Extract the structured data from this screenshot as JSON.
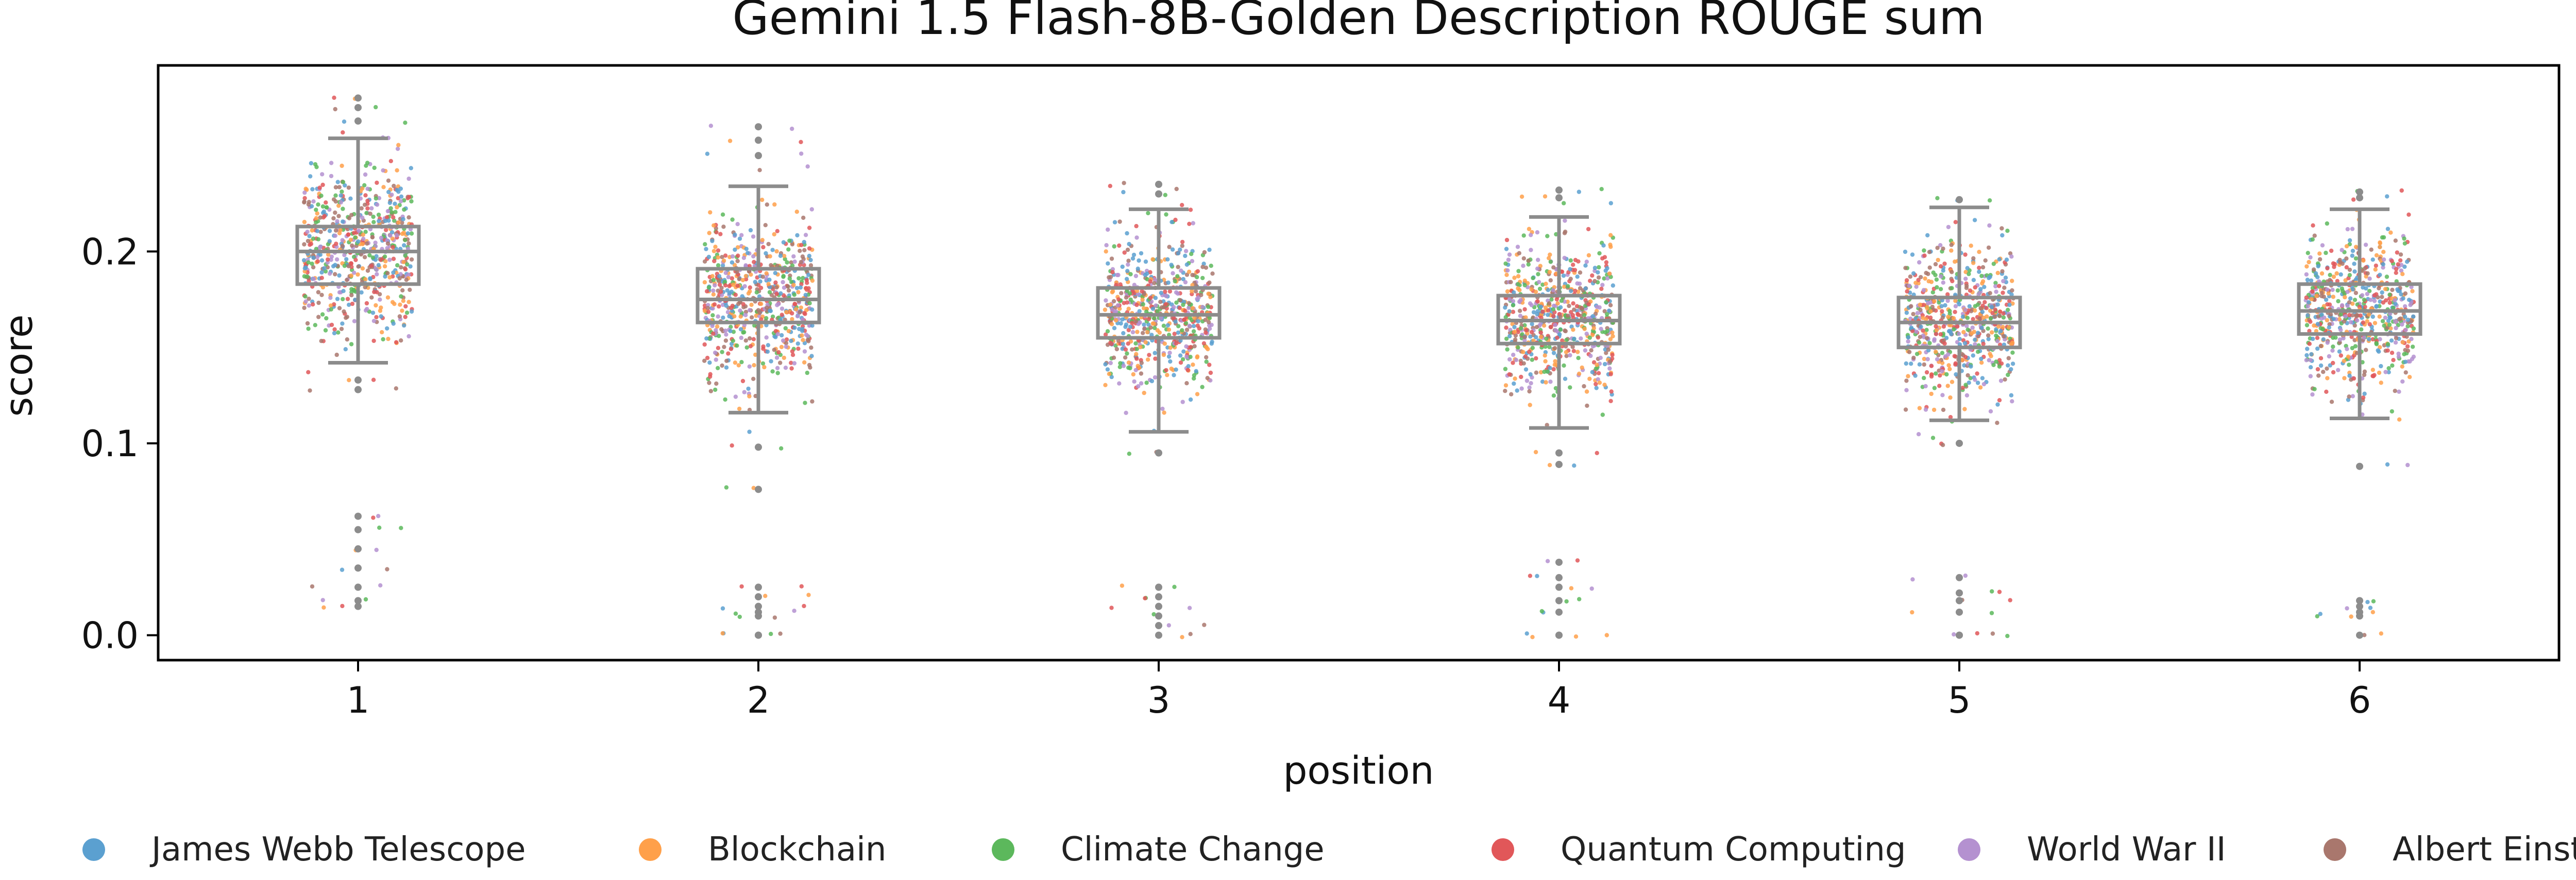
{
  "chart_data": {
    "type": "box-strip",
    "title": "Gemini 1.5 Flash-8B-Golden Description ROUGE sum",
    "xlabel": "position",
    "ylabel": "score",
    "categories": [
      "1",
      "2",
      "3",
      "4",
      "5",
      "6"
    ],
    "ylim": [
      -0.013,
      0.297
    ],
    "yticks": [
      0.0,
      0.1,
      0.2
    ],
    "ytick_labels": [
      "0.0",
      "0.1",
      "0.2"
    ],
    "grid": false,
    "legend_position": "bottom",
    "box_color": "#8c8c8c",
    "box_stats": [
      {
        "category": "1",
        "whisker_low": 0.142,
        "q1": 0.183,
        "median": 0.2,
        "q3": 0.213,
        "whisker_high": 0.259
      },
      {
        "category": "2",
        "whisker_low": 0.116,
        "q1": 0.163,
        "median": 0.175,
        "q3": 0.191,
        "whisker_high": 0.234
      },
      {
        "category": "3",
        "whisker_low": 0.106,
        "q1": 0.155,
        "median": 0.167,
        "q3": 0.181,
        "whisker_high": 0.222
      },
      {
        "category": "4",
        "whisker_low": 0.108,
        "q1": 0.152,
        "median": 0.164,
        "q3": 0.177,
        "whisker_high": 0.218
      },
      {
        "category": "5",
        "whisker_low": 0.112,
        "q1": 0.15,
        "median": 0.163,
        "q3": 0.176,
        "whisker_high": 0.223
      },
      {
        "category": "6",
        "whisker_low": 0.113,
        "q1": 0.157,
        "median": 0.169,
        "q3": 0.183,
        "whisker_high": 0.222
      }
    ],
    "outliers": [
      {
        "category": "1",
        "values": [
          0.28,
          0.275,
          0.268,
          0.133,
          0.128,
          0.062,
          0.055,
          0.045,
          0.035,
          0.025,
          0.018,
          0.015
        ]
      },
      {
        "category": "2",
        "values": [
          0.265,
          0.258,
          0.25,
          0.098,
          0.076,
          0.025,
          0.02,
          0.015,
          0.012,
          0.01,
          0.0,
          0.0
        ]
      },
      {
        "category": "3",
        "values": [
          0.235,
          0.23,
          0.095,
          0.025,
          0.02,
          0.015,
          0.01,
          0.005,
          0.0
        ]
      },
      {
        "category": "4",
        "values": [
          0.232,
          0.228,
          0.095,
          0.089,
          0.038,
          0.03,
          0.025,
          0.018,
          0.012,
          0.0,
          0.0
        ]
      },
      {
        "category": "5",
        "values": [
          0.227,
          0.1,
          0.03,
          0.022,
          0.018,
          0.012,
          0.0,
          0.0
        ]
      },
      {
        "category": "6",
        "values": [
          0.231,
          0.228,
          0.088,
          0.018,
          0.015,
          0.012,
          0.01,
          0.0
        ]
      }
    ],
    "series": [
      {
        "name": "James Webb Telescope",
        "color": "#5ba0d0"
      },
      {
        "name": "Blockchain",
        "color": "#ffa04a"
      },
      {
        "name": "Climate Change",
        "color": "#5cb85c"
      },
      {
        "name": "Quantum Computing",
        "color": "#e15759"
      },
      {
        "name": "World War II",
        "color": "#b491d0"
      },
      {
        "name": "Albert Einstein",
        "color": "#a9776d"
      }
    ]
  }
}
